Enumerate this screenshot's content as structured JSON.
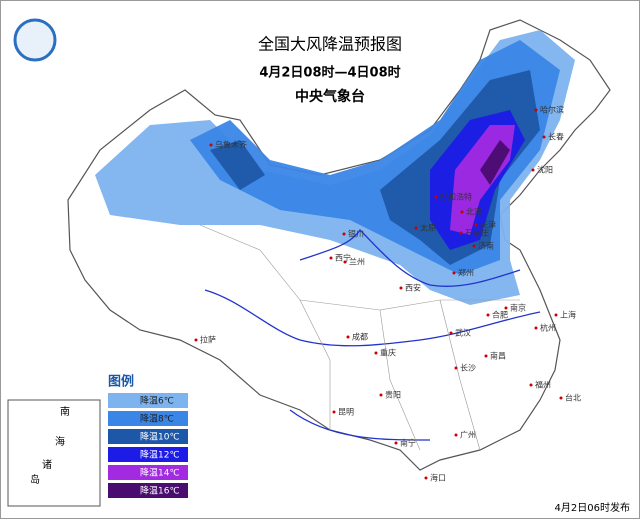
{
  "header": {
    "title": "全国大风降温预报图",
    "period": "4月2日08时—4日08时",
    "issuer": "中央气象台"
  },
  "legend": {
    "title": "图例",
    "items": [
      {
        "label": "降温6℃",
        "color": "#7db3ef"
      },
      {
        "label": "降温8℃",
        "color": "#3a86e6"
      },
      {
        "label": "降温10℃",
        "color": "#1d57a8"
      },
      {
        "label": "降温12℃",
        "color": "#1c1ce6"
      },
      {
        "label": "降温14℃",
        "color": "#a22ae0"
      },
      {
        "label": "降温16℃",
        "color": "#4a0c6e"
      }
    ]
  },
  "cities": [
    "乌鲁木齐",
    "哈尔滨",
    "长春",
    "沈阳",
    "呼和浩特",
    "北京",
    "天津",
    "石家庄",
    "济南",
    "银川",
    "兰州",
    "西宁",
    "太原",
    "郑州",
    "西安",
    "合肥",
    "南京",
    "上海",
    "杭州",
    "武汉",
    "成都",
    "重庆",
    "拉萨",
    "长沙",
    "南昌",
    "福州",
    "台北",
    "贵阳",
    "昆明",
    "南宁",
    "广州",
    "海口"
  ],
  "inset": {
    "labels": [
      "南",
      "海",
      "诸",
      "岛"
    ]
  },
  "footer": "4月2日06时发布"
}
